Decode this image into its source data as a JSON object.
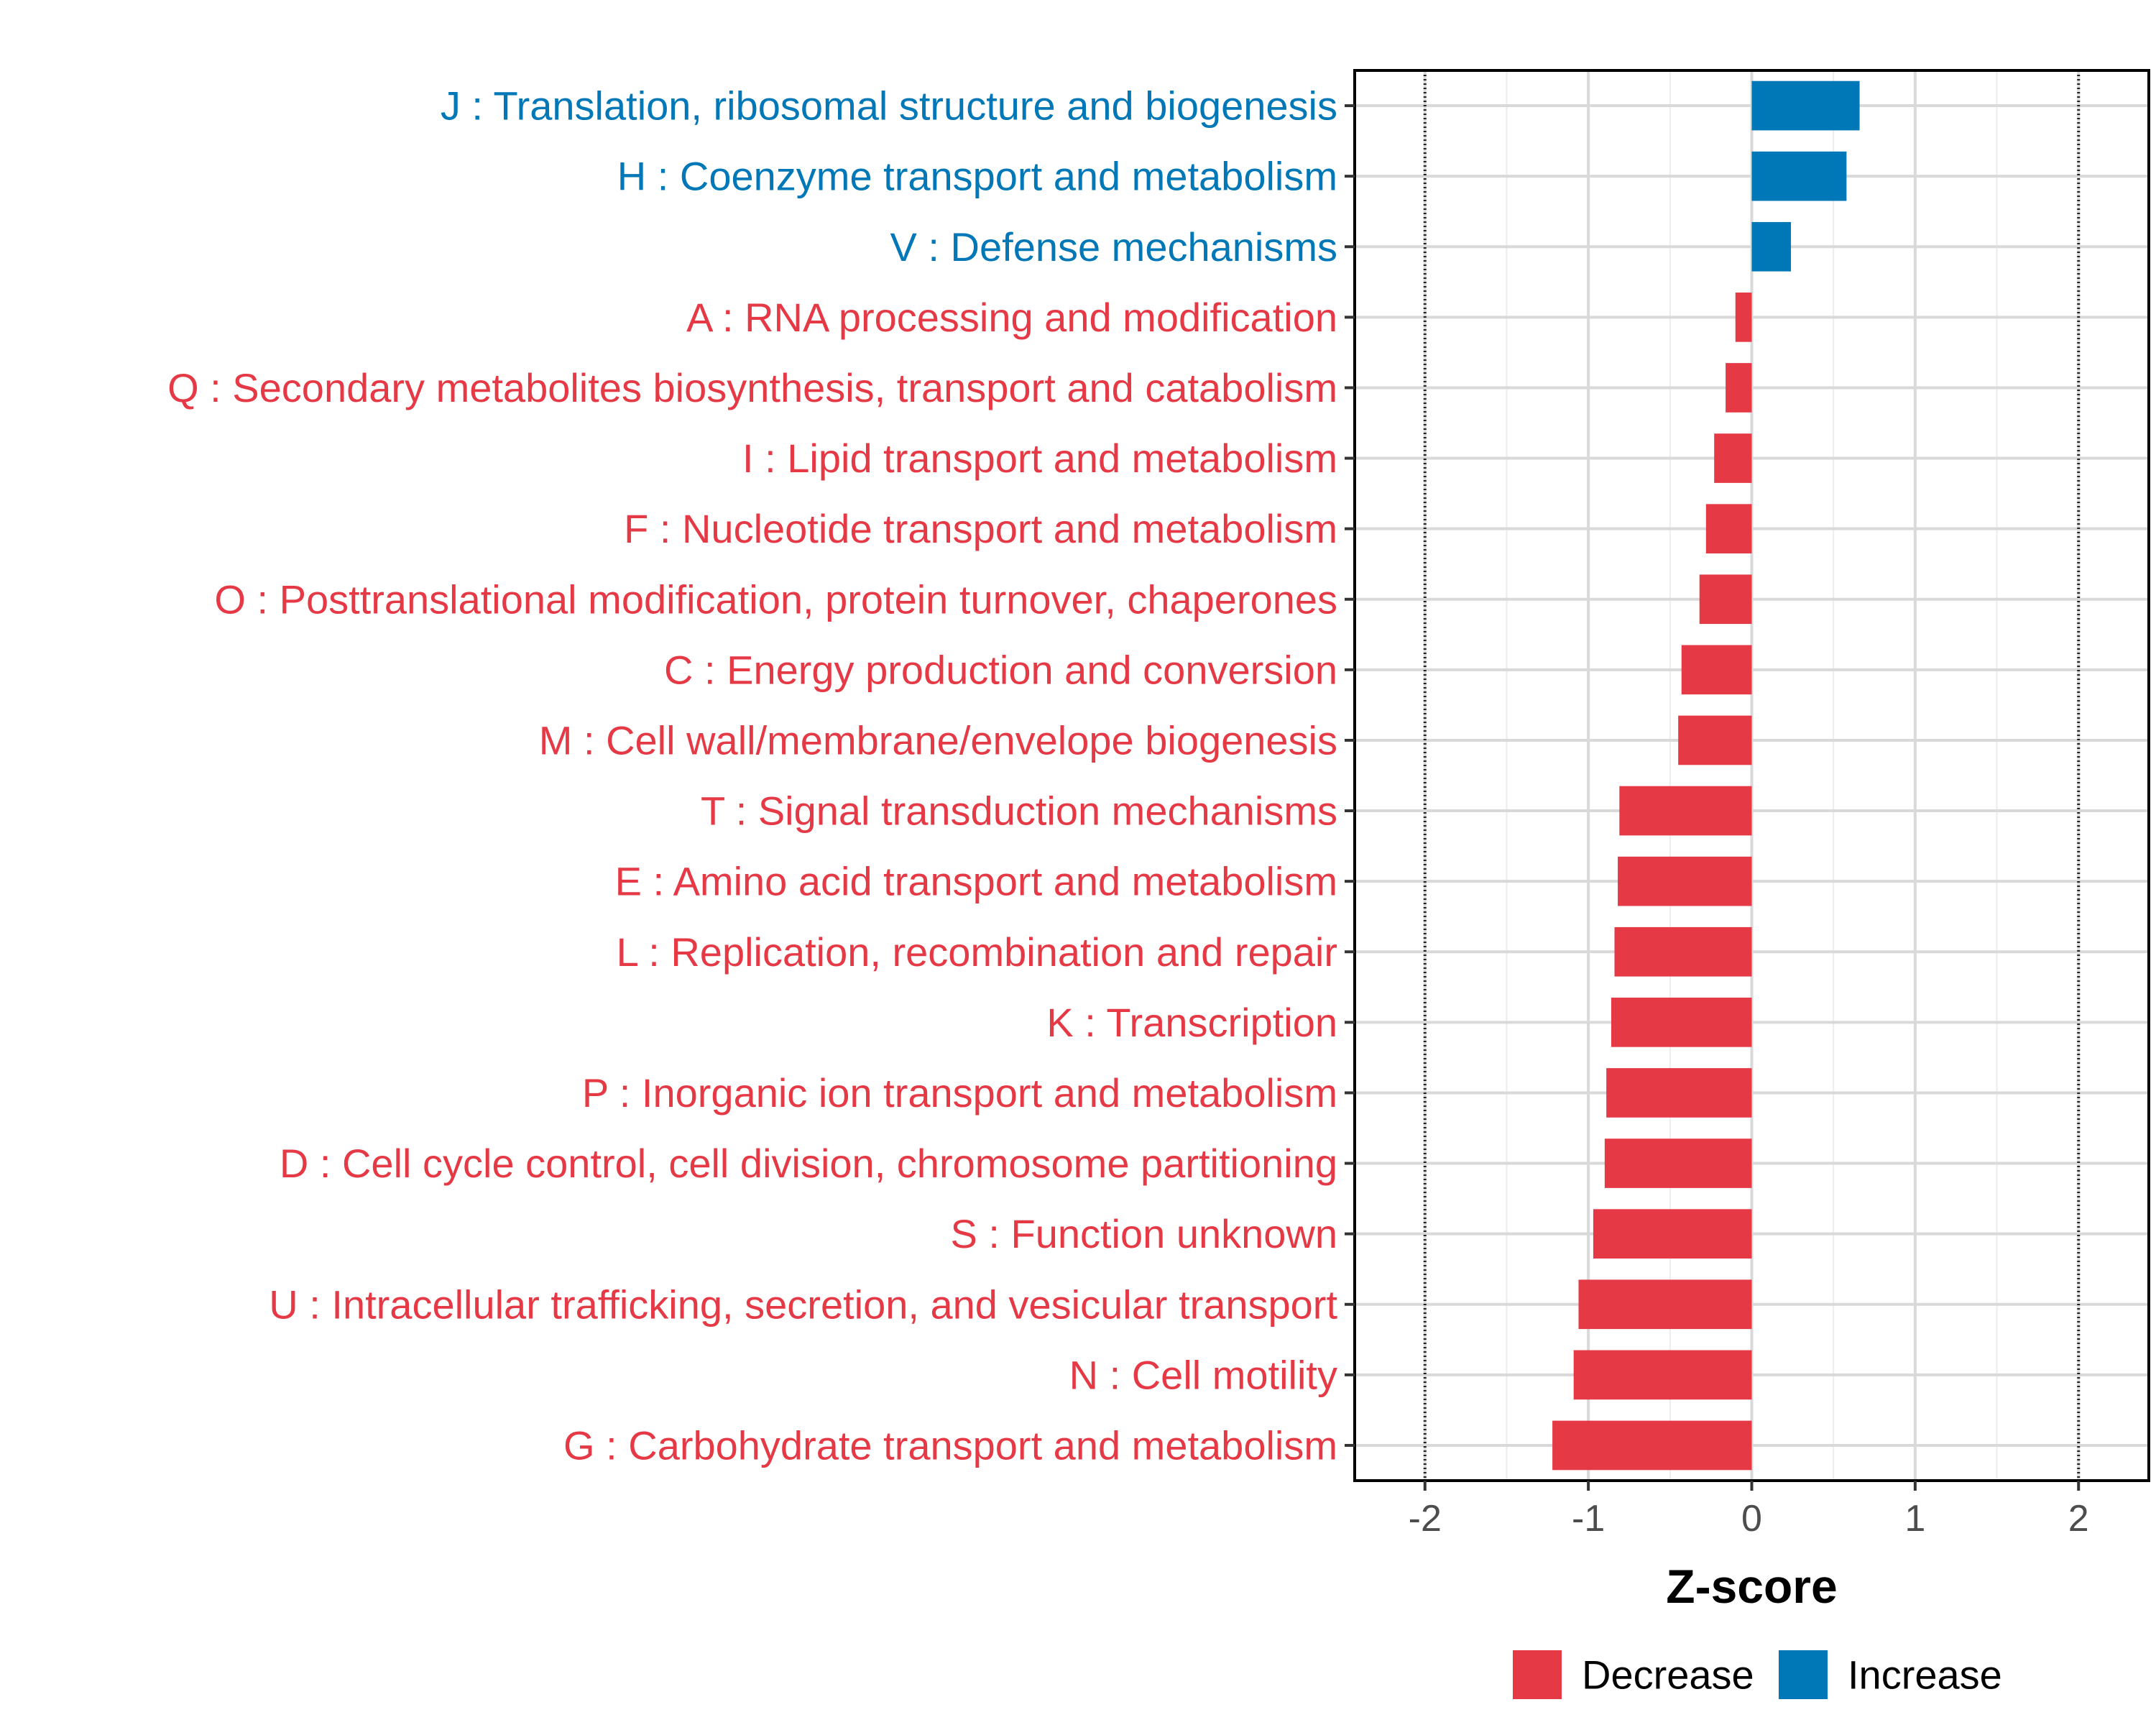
{
  "chart_data": {
    "type": "bar",
    "orientation": "horizontal",
    "title": "",
    "xlabel": "Z-score",
    "ylabel": "",
    "xlim": [
      -2.43,
      2.43
    ],
    "xticks": [
      -2,
      -1,
      0,
      1,
      2
    ],
    "xtick_labels": [
      "-2",
      "-1",
      "0",
      "1",
      "2"
    ],
    "reference_lines": [
      -2,
      2
    ],
    "grid": true,
    "legend_position": "bottom",
    "legend": [
      {
        "name": "Decrease",
        "color": "#E63946"
      },
      {
        "name": "Increase",
        "color": "#0077B6"
      }
    ],
    "colors": {
      "Decrease": "#E63946",
      "Increase": "#0077B6"
    },
    "bars": [
      {
        "label": "J : Translation, ribosomal structure and biogenesis",
        "value": 0.66,
        "group": "Increase"
      },
      {
        "label": "H : Coenzyme transport and metabolism",
        "value": 0.58,
        "group": "Increase"
      },
      {
        "label": "V : Defense mechanisms",
        "value": 0.24,
        "group": "Increase"
      },
      {
        "label": "A : RNA processing and modification",
        "value": -0.1,
        "group": "Decrease"
      },
      {
        "label": "Q : Secondary metabolites biosynthesis, transport and catabolism",
        "value": -0.16,
        "group": "Decrease"
      },
      {
        "label": "I : Lipid transport and metabolism",
        "value": -0.23,
        "group": "Decrease"
      },
      {
        "label": "F : Nucleotide transport and metabolism",
        "value": -0.28,
        "group": "Decrease"
      },
      {
        "label": "O : Posttranslational modification, protein turnover, chaperones",
        "value": -0.32,
        "group": "Decrease"
      },
      {
        "label": "C : Energy production and conversion",
        "value": -0.43,
        "group": "Decrease"
      },
      {
        "label": "M : Cell wall/membrane/envelope biogenesis",
        "value": -0.45,
        "group": "Decrease"
      },
      {
        "label": "T : Signal transduction mechanisms",
        "value": -0.81,
        "group": "Decrease"
      },
      {
        "label": "E : Amino acid transport and metabolism",
        "value": -0.82,
        "group": "Decrease"
      },
      {
        "label": "L : Replication, recombination and repair",
        "value": -0.84,
        "group": "Decrease"
      },
      {
        "label": "K : Transcription",
        "value": -0.86,
        "group": "Decrease"
      },
      {
        "label": "P : Inorganic ion transport and metabolism",
        "value": -0.89,
        "group": "Decrease"
      },
      {
        "label": "D : Cell cycle control, cell division, chromosome partitioning",
        "value": -0.9,
        "group": "Decrease"
      },
      {
        "label": "S : Function unknown",
        "value": -0.97,
        "group": "Decrease"
      },
      {
        "label": "U : Intracellular trafficking, secretion, and vesicular transport",
        "value": -1.06,
        "group": "Decrease"
      },
      {
        "label": "N : Cell motility",
        "value": -1.09,
        "group": "Decrease"
      },
      {
        "label": "G : Carbohydrate transport and metabolism",
        "value": -1.22,
        "group": "Decrease"
      }
    ]
  }
}
